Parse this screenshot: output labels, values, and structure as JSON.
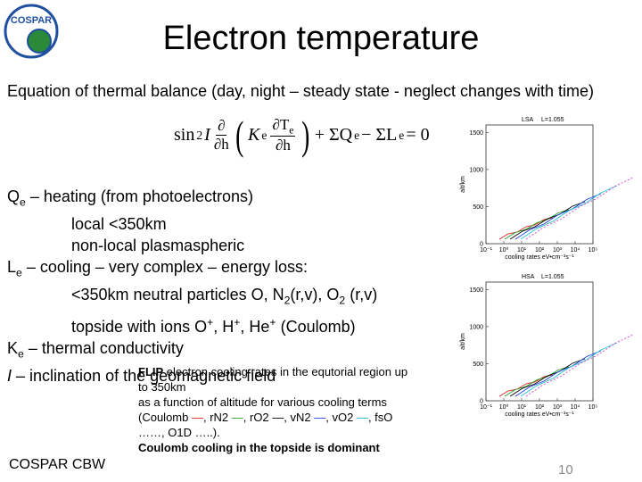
{
  "header": {
    "title": "Electron temperature",
    "logo_text": "COSPAR"
  },
  "intro": "Equation of thermal balance  (day, night – steady state - neglect changes with time)",
  "equation": {
    "sin": "sin",
    "pow": "2",
    "I": "I",
    "d_num": "∂",
    "d_den": "∂h",
    "open": "(",
    "K": "K",
    "K_sub": "e",
    "T_num": "∂T",
    "T_sub": "e",
    "T_den": "∂h",
    "close": ")",
    "sum_q": "+ ΣQ",
    "q_sub": "e",
    "sum_l": "− ΣL",
    "l_sub": "e",
    "equals": "= 0"
  },
  "body": [
    {
      "segments": [
        {
          "t": "Q"
        },
        {
          "sub": "e"
        },
        {
          "t": " – heating (from photoelectrons)"
        }
      ],
      "children": [
        [
          {
            "t": "local <350km"
          }
        ],
        [
          {
            "t": "non-local  plasmaspheric"
          }
        ]
      ]
    },
    {
      "segments": [
        {
          "t": "L"
        },
        {
          "sub": "e"
        },
        {
          "t": " – cooling – very complex – energy loss:"
        }
      ],
      "children": [
        [
          {
            "t": "<350km neutral particles O, N"
          },
          {
            "sub": "2"
          },
          {
            "t": "(r,v), O"
          },
          {
            "sub": "2"
          },
          {
            "t": " (r,v)"
          }
        ],
        [
          {
            "t": "topside with ions O"
          },
          {
            "sup": "+"
          },
          {
            "t": ", H"
          },
          {
            "sup": "+"
          },
          {
            "t": ", He"
          },
          {
            "sup": "+"
          },
          {
            "t": " (Coulomb)"
          }
        ]
      ]
    },
    {
      "segments": [
        {
          "t": "K"
        },
        {
          "sub": "e"
        },
        {
          "t": " – thermal conductivity"
        }
      ],
      "children": []
    },
    {
      "segments": [
        {
          "i": "I"
        },
        {
          "t": " – inclination of the geomagnetic field"
        }
      ],
      "children": []
    }
  ],
  "caption": [
    [
      {
        "b": "FLIP"
      },
      {
        "t": " electron cooling rates in the equtorial region up"
      }
    ],
    [
      {
        "t": "to 350km"
      }
    ],
    [
      {
        "t": "as a function of altitude for various cooling terms"
      }
    ],
    [
      {
        "t": "(Coulomb "
      },
      {
        "t": "—",
        "color": "#e02020"
      },
      {
        "t": ", rN2 "
      },
      {
        "t": "—",
        "color": "#20a020"
      },
      {
        "t": ", rO2 "
      },
      {
        "t": "—",
        "color": "#000000"
      },
      {
        "t": ", vN2 "
      },
      {
        "t": "—",
        "color": "#2040e0"
      },
      {
        "t": ", vO2 "
      },
      {
        "t": "—",
        "color": "#20c0d0"
      },
      {
        "t": ", fsO"
      }
    ],
    [
      {
        "t": "……, O1D …..)."
      }
    ],
    [
      {
        "b": "Coulomb cooling in the topside is dominant"
      }
    ]
  ],
  "plots": [
    {
      "label": "LSA",
      "l_value": "L=1.055",
      "ylabel": "alt/km",
      "ylim": [
        0,
        1600
      ],
      "yticks": [
        1500,
        1000,
        500,
        0
      ],
      "xlim": [
        0.1,
        100000
      ],
      "xticks": [
        {
          "value": 0.1,
          "label": "10⁻¹"
        },
        {
          "value": 1,
          "label": "10⁰"
        },
        {
          "value": 10,
          "label": "10¹"
        },
        {
          "value": 100,
          "label": "10²"
        },
        {
          "value": 1000,
          "label": "10³"
        },
        {
          "value": 10000,
          "label": "10⁴"
        },
        {
          "value": 100000,
          "label": "10⁵"
        }
      ],
      "xlabel": "cooling rates eV•cm⁻³s⁻¹"
    },
    {
      "label": "HSA",
      "l_value": "L=1.055",
      "ylabel": "alt/km",
      "ylim": [
        0,
        1600
      ],
      "yticks": [
        1500,
        1000,
        500,
        0
      ],
      "xlim": [
        0.1,
        100000
      ],
      "xticks": [
        {
          "value": 0.1,
          "label": "10⁻¹"
        },
        {
          "value": 1,
          "label": "10⁰"
        },
        {
          "value": 10,
          "label": "10¹"
        },
        {
          "value": 100,
          "label": "10²"
        },
        {
          "value": 1000,
          "label": "10³"
        },
        {
          "value": 10000,
          "label": "10⁴"
        },
        {
          "value": 100000,
          "label": "10⁵"
        }
      ],
      "xlabel": "cooling rates eV•cm⁻³s⁻¹"
    }
  ],
  "footer": {
    "left": "COSPAR CBW",
    "page": "10"
  }
}
